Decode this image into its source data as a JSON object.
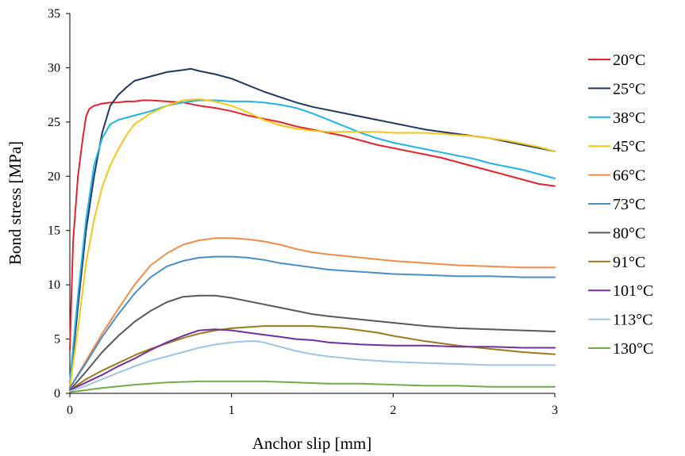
{
  "chart_data": {
    "type": "line",
    "title": "",
    "xlabel": "Anchor slip [mm]",
    "ylabel": "Bond stress [MPa]",
    "xlim": [
      0,
      3
    ],
    "ylim": [
      0,
      35
    ],
    "xticks": [
      "0",
      "1",
      "2",
      "3"
    ],
    "yticks": [
      "0",
      "5",
      "10",
      "15",
      "20",
      "25",
      "30",
      "35"
    ],
    "grid": false,
    "legend_position": "right",
    "series": [
      {
        "name": "20°C",
        "color": "#e8222a",
        "x": [
          0,
          0.02,
          0.05,
          0.08,
          0.1,
          0.12,
          0.15,
          0.2,
          0.25,
          0.3,
          0.35,
          0.4,
          0.45,
          0.5,
          0.6,
          0.7,
          0.8,
          0.9,
          1.0,
          1.1,
          1.2,
          1.3,
          1.4,
          1.5,
          1.6,
          1.7,
          1.8,
          1.9,
          2.0,
          2.1,
          2.2,
          2.3,
          2.4,
          2.5,
          2.6,
          2.7,
          2.8,
          2.9,
          3.0
        ],
        "y": [
          4,
          14,
          20,
          23.5,
          25.5,
          26.2,
          26.5,
          26.7,
          26.8,
          26.8,
          26.9,
          26.9,
          27.0,
          27.0,
          26.9,
          26.8,
          26.5,
          26.3,
          26.0,
          25.6,
          25.3,
          25.0,
          24.6,
          24.3,
          24.0,
          23.7,
          23.3,
          22.9,
          22.6,
          22.3,
          22.0,
          21.7,
          21.3,
          20.9,
          20.5,
          20.1,
          19.7,
          19.3,
          19.1
        ]
      },
      {
        "name": "25°C",
        "color": "#1f3864",
        "x": [
          0,
          0.05,
          0.1,
          0.15,
          0.2,
          0.25,
          0.3,
          0.35,
          0.4,
          0.5,
          0.6,
          0.7,
          0.75,
          0.8,
          0.9,
          1.0,
          1.1,
          1.2,
          1.3,
          1.4,
          1.5,
          1.6,
          1.7,
          1.8,
          1.9,
          2.0,
          2.1,
          2.2,
          2.3,
          2.4,
          2.5,
          2.6,
          2.7,
          2.8,
          2.9,
          3.0
        ],
        "y": [
          0.5,
          8,
          15,
          20,
          24,
          26.5,
          27.5,
          28.2,
          28.8,
          29.2,
          29.6,
          29.8,
          29.9,
          29.7,
          29.4,
          29.0,
          28.4,
          27.8,
          27.3,
          26.8,
          26.4,
          26.1,
          25.8,
          25.5,
          25.2,
          24.9,
          24.6,
          24.3,
          24.1,
          23.9,
          23.7,
          23.5,
          23.2,
          22.9,
          22.6,
          22.3
        ]
      },
      {
        "name": "38°C",
        "color": "#1fb4ea",
        "x": [
          0,
          0.05,
          0.1,
          0.15,
          0.2,
          0.25,
          0.3,
          0.35,
          0.4,
          0.5,
          0.6,
          0.7,
          0.8,
          0.9,
          1.0,
          1.1,
          1.2,
          1.3,
          1.4,
          1.5,
          1.6,
          1.7,
          1.8,
          1.9,
          2.0,
          2.1,
          2.2,
          2.3,
          2.4,
          2.5,
          2.6,
          2.7,
          2.8,
          2.9,
          3.0
        ],
        "y": [
          1,
          9,
          16,
          21,
          23.5,
          24.8,
          25.2,
          25.4,
          25.6,
          26.0,
          26.5,
          26.8,
          27.0,
          27.0,
          26.9,
          26.9,
          26.8,
          26.6,
          26.3,
          25.8,
          25.2,
          24.6,
          24.0,
          23.5,
          23.1,
          22.8,
          22.5,
          22.2,
          21.9,
          21.6,
          21.2,
          20.9,
          20.6,
          20.2,
          19.8
        ]
      },
      {
        "name": "45°C",
        "color": "#f5c518",
        "x": [
          0,
          0.05,
          0.1,
          0.15,
          0.2,
          0.25,
          0.3,
          0.35,
          0.4,
          0.5,
          0.6,
          0.7,
          0.8,
          0.9,
          1.0,
          1.1,
          1.2,
          1.3,
          1.4,
          1.5,
          1.6,
          1.7,
          1.8,
          1.9,
          2.0,
          2.1,
          2.2,
          2.3,
          2.4,
          2.5,
          2.6,
          2.7,
          2.8,
          2.9,
          3.0
        ],
        "y": [
          0.5,
          6,
          12,
          16,
          19,
          21,
          22.5,
          23.8,
          24.8,
          25.8,
          26.5,
          27.0,
          27.1,
          26.9,
          26.5,
          25.9,
          25.2,
          24.7,
          24.4,
          24.2,
          24.1,
          24.1,
          24.1,
          24.1,
          24.0,
          24.0,
          24.0,
          23.9,
          23.8,
          23.7,
          23.5,
          23.3,
          23.0,
          22.7,
          22.3
        ]
      },
      {
        "name": "66°C",
        "color": "#f08c4a",
        "x": [
          0,
          0.1,
          0.2,
          0.3,
          0.4,
          0.5,
          0.6,
          0.7,
          0.8,
          0.9,
          1.0,
          1.1,
          1.2,
          1.3,
          1.4,
          1.5,
          1.6,
          1.8,
          2.0,
          2.2,
          2.4,
          2.6,
          2.8,
          3.0
        ],
        "y": [
          0.5,
          3,
          5.5,
          7.8,
          10,
          11.8,
          12.9,
          13.7,
          14.1,
          14.3,
          14.3,
          14.2,
          14.0,
          13.7,
          13.3,
          13.0,
          12.8,
          12.5,
          12.2,
          12.0,
          11.8,
          11.7,
          11.6,
          11.6
        ]
      },
      {
        "name": "73°C",
        "color": "#4a8ec9",
        "x": [
          0,
          0.1,
          0.2,
          0.3,
          0.4,
          0.5,
          0.6,
          0.7,
          0.8,
          0.9,
          1.0,
          1.1,
          1.2,
          1.3,
          1.4,
          1.5,
          1.6,
          1.8,
          2.0,
          2.2,
          2.4,
          2.6,
          2.8,
          3.0
        ],
        "y": [
          0.5,
          2.8,
          5.2,
          7.3,
          9.2,
          10.7,
          11.7,
          12.2,
          12.5,
          12.6,
          12.6,
          12.5,
          12.3,
          12.0,
          11.8,
          11.6,
          11.4,
          11.2,
          11.0,
          10.9,
          10.8,
          10.8,
          10.7,
          10.7
        ]
      },
      {
        "name": "80°C",
        "color": "#595959",
        "x": [
          0,
          0.1,
          0.2,
          0.3,
          0.4,
          0.5,
          0.6,
          0.7,
          0.8,
          0.9,
          1.0,
          1.1,
          1.2,
          1.3,
          1.4,
          1.5,
          1.6,
          1.8,
          2.0,
          2.2,
          2.4,
          2.6,
          2.8,
          3.0
        ],
        "y": [
          0.3,
          2,
          3.8,
          5.3,
          6.6,
          7.6,
          8.4,
          8.9,
          9.0,
          9.0,
          8.8,
          8.5,
          8.2,
          7.9,
          7.6,
          7.3,
          7.1,
          6.8,
          6.5,
          6.2,
          6.0,
          5.9,
          5.8,
          5.7
        ]
      },
      {
        "name": "91°C",
        "color": "#9c7a1a",
        "x": [
          0,
          0.1,
          0.2,
          0.3,
          0.4,
          0.5,
          0.6,
          0.7,
          0.8,
          0.9,
          1.0,
          1.1,
          1.2,
          1.3,
          1.4,
          1.5,
          1.6,
          1.7,
          1.8,
          1.9,
          2.0,
          2.2,
          2.4,
          2.6,
          2.8,
          3.0
        ],
        "y": [
          0.3,
          1.3,
          2.1,
          2.8,
          3.5,
          4.1,
          4.6,
          5.1,
          5.5,
          5.8,
          6.0,
          6.1,
          6.2,
          6.2,
          6.2,
          6.2,
          6.1,
          6.0,
          5.8,
          5.6,
          5.3,
          4.8,
          4.4,
          4.1,
          3.8,
          3.6
        ]
      },
      {
        "name": "101°C",
        "color": "#7030a0",
        "x": [
          0,
          0.1,
          0.2,
          0.3,
          0.4,
          0.5,
          0.6,
          0.7,
          0.8,
          0.9,
          1.0,
          1.1,
          1.2,
          1.3,
          1.4,
          1.5,
          1.6,
          1.8,
          2.0,
          2.2,
          2.4,
          2.6,
          2.8,
          3.0
        ],
        "y": [
          0.3,
          1.0,
          1.7,
          2.5,
          3.2,
          4.0,
          4.7,
          5.3,
          5.8,
          5.9,
          5.8,
          5.6,
          5.4,
          5.2,
          5.0,
          4.9,
          4.7,
          4.5,
          4.4,
          4.4,
          4.3,
          4.3,
          4.2,
          4.2
        ]
      },
      {
        "name": "113°C",
        "color": "#9dc3e6",
        "x": [
          0,
          0.1,
          0.2,
          0.3,
          0.4,
          0.5,
          0.6,
          0.7,
          0.8,
          0.9,
          1.0,
          1.1,
          1.15,
          1.2,
          1.3,
          1.4,
          1.5,
          1.6,
          1.8,
          2.0,
          2.2,
          2.4,
          2.6,
          2.8,
          3.0
        ],
        "y": [
          0.2,
          0.7,
          1.3,
          1.9,
          2.5,
          3.0,
          3.4,
          3.8,
          4.2,
          4.5,
          4.7,
          4.8,
          4.8,
          4.7,
          4.3,
          3.9,
          3.6,
          3.4,
          3.1,
          2.9,
          2.8,
          2.7,
          2.6,
          2.6,
          2.6
        ]
      },
      {
        "name": "130°C",
        "color": "#70ad47",
        "x": [
          0,
          0.2,
          0.4,
          0.6,
          0.8,
          1.0,
          1.2,
          1.4,
          1.6,
          1.8,
          2.0,
          2.2,
          2.4,
          2.6,
          2.8,
          3.0
        ],
        "y": [
          0.1,
          0.5,
          0.8,
          1.0,
          1.1,
          1.1,
          1.1,
          1.0,
          0.9,
          0.9,
          0.8,
          0.7,
          0.7,
          0.6,
          0.6,
          0.6
        ]
      }
    ]
  }
}
